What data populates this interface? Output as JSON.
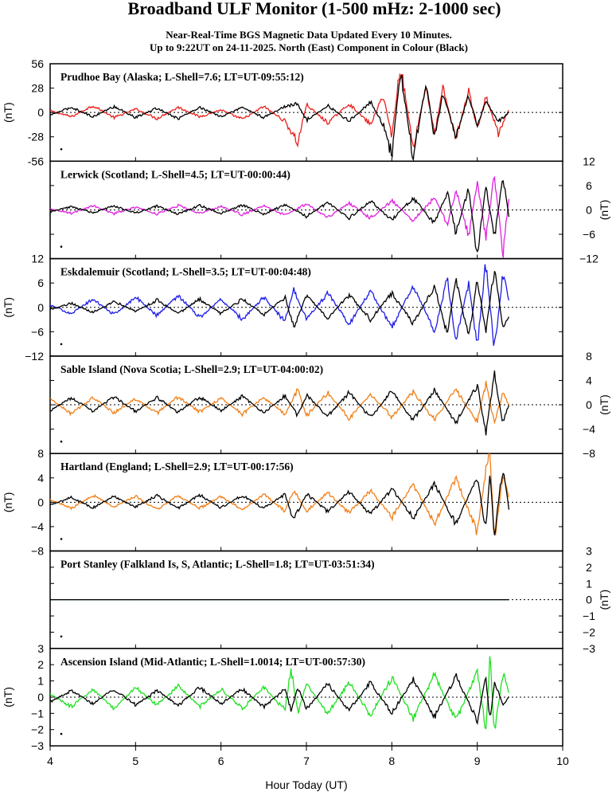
{
  "title": "Broadband ULF Monitor (1-500 mHz: 2-1000 sec)",
  "subtitle_line1": "Near-Real-Time BGS Magnetic Data Updated Every 10 Minutes.",
  "subtitle_line2": "Up to 9:22UT on 24-11-2025. North (East) Component in Colour (Black)",
  "chart_data": {
    "type": "line",
    "xlabel": "Hour Today (UT)",
    "xlim": [
      4,
      10
    ],
    "xticks": [
      "4",
      "5",
      "6",
      "7",
      "8",
      "9",
      "10"
    ],
    "data_end_hour": 9.37,
    "panels": [
      {
        "label": "Prudhoe Bay (Alaska; L-Shell=7.6; LT=UT-09:55:12)",
        "ylabel": "(nT)",
        "ylabel_side": "left",
        "ylim": [
          -56,
          56
        ],
        "yticks": [
          "56",
          "28",
          "0",
          "-28",
          "-56"
        ],
        "north_color": "#e8201c",
        "east_color": "#000000",
        "series": [
          {
            "component": "North",
            "x": [
              4.0,
              4.25,
              4.5,
              4.75,
              5.0,
              5.25,
              5.5,
              5.75,
              6.0,
              6.25,
              6.5,
              6.75,
              6.9,
              7.0,
              7.25,
              7.5,
              7.75,
              7.9,
              8.0,
              8.1,
              8.25,
              8.4,
              8.5,
              8.6,
              8.75,
              8.9,
              9.0,
              9.1,
              9.25,
              9.37
            ],
            "y": [
              2,
              -5,
              8,
              -6,
              4,
              -7,
              6,
              -5,
              3,
              -8,
              7,
              -10,
              -35,
              9,
              -12,
              10,
              -14,
              20,
              -28,
              55,
              -40,
              30,
              -25,
              28,
              -30,
              25,
              -20,
              18,
              -25,
              3
            ]
          },
          {
            "component": "East",
            "x": [
              4.0,
              4.25,
              4.5,
              4.75,
              5.0,
              5.25,
              5.5,
              5.75,
              6.0,
              6.25,
              6.5,
              6.75,
              6.9,
              7.0,
              7.25,
              7.5,
              7.75,
              7.9,
              8.0,
              8.1,
              8.25,
              8.4,
              8.5,
              8.6,
              8.75,
              8.9,
              9.0,
              9.1,
              9.25,
              9.37
            ],
            "y": [
              -3,
              6,
              -5,
              7,
              -6,
              5,
              -7,
              6,
              -5,
              6,
              -6,
              7,
              10,
              -9,
              8,
              -10,
              12,
              -14,
              -50,
              48,
              -52,
              35,
              -30,
              22,
              -28,
              20,
              -15,
              12,
              -10,
              0
            ]
          }
        ]
      },
      {
        "label": "Lerwick (Scotland; L-Shell=4.5; LT=UT-00:00:44)",
        "ylabel": "(nT)",
        "ylabel_side": "right",
        "ylim": [
          -12,
          12
        ],
        "yticks": [
          "12",
          "6",
          "0",
          "−6",
          "−12"
        ],
        "north_color": "#e020e0",
        "east_color": "#000000",
        "series": [
          {
            "component": "North",
            "x": [
              4.0,
              4.25,
              4.5,
              4.75,
              5.0,
              5.25,
              5.5,
              5.75,
              6.0,
              6.25,
              6.5,
              6.75,
              7.0,
              7.25,
              7.5,
              7.75,
              8.0,
              8.25,
              8.5,
              8.65,
              8.75,
              8.9,
              9.0,
              9.1,
              9.2,
              9.3,
              9.37
            ],
            "y": [
              0.3,
              -0.8,
              1.0,
              -0.9,
              0.7,
              -1.0,
              1.1,
              -0.8,
              0.9,
              -1.2,
              1.0,
              -1.3,
              1.5,
              -1.8,
              1.7,
              -2.0,
              2.2,
              -2.5,
              3.0,
              -3.5,
              5.0,
              -6.5,
              7.5,
              -7.0,
              8.5,
              -10.5,
              3.0
            ]
          },
          {
            "component": "East",
            "x": [
              4.0,
              4.25,
              4.5,
              4.75,
              5.0,
              5.25,
              5.5,
              5.75,
              6.0,
              6.25,
              6.5,
              6.75,
              7.0,
              7.25,
              7.5,
              7.75,
              8.0,
              8.25,
              8.5,
              8.65,
              8.75,
              8.9,
              9.0,
              9.1,
              9.2,
              9.3,
              9.37
            ],
            "y": [
              -0.5,
              0.8,
              -0.7,
              1.0,
              -0.8,
              0.9,
              -1.0,
              1.1,
              -0.9,
              1.2,
              -1.1,
              1.4,
              -1.6,
              1.8,
              -2.0,
              2.2,
              -2.5,
              3.0,
              -3.4,
              4.5,
              -6.0,
              5.5,
              -11.5,
              6.0,
              -7.0,
              8.0,
              -1.5
            ]
          }
        ]
      },
      {
        "label": "Eskdalemuir (Scotland; L-Shell=3.5; LT=UT-00:04:48)",
        "ylabel": "(nT)",
        "ylabel_side": "left",
        "ylim": [
          -12,
          12
        ],
        "yticks": [
          "12",
          "6",
          "0",
          "−6",
          "−12"
        ],
        "north_color": "#1c1ce8",
        "east_color": "#000000",
        "series": [
          {
            "component": "North",
            "x": [
              4.0,
              4.25,
              4.5,
              4.75,
              5.0,
              5.25,
              5.5,
              5.75,
              6.0,
              6.25,
              6.5,
              6.75,
              6.85,
              7.0,
              7.25,
              7.5,
              7.75,
              8.0,
              8.25,
              8.5,
              8.65,
              8.75,
              8.9,
              9.0,
              9.1,
              9.2,
              9.3,
              9.37
            ],
            "y": [
              0.5,
              -1.5,
              2.0,
              -1.8,
              2.5,
              -2.0,
              3.0,
              -2.5,
              2.0,
              -3.0,
              2.5,
              -3.5,
              4.5,
              -3.0,
              3.5,
              -4.0,
              4.0,
              -5.0,
              5.5,
              -6.0,
              7.0,
              -8.5,
              6.0,
              -9.5,
              11.0,
              -10.5,
              8.0,
              2.0
            ]
          },
          {
            "component": "East",
            "x": [
              4.0,
              4.25,
              4.5,
              4.75,
              5.0,
              5.25,
              5.5,
              5.75,
              6.0,
              6.25,
              6.5,
              6.75,
              6.85,
              7.0,
              7.25,
              7.5,
              7.75,
              8.0,
              8.25,
              8.5,
              8.65,
              8.75,
              8.9,
              9.0,
              9.1,
              9.2,
              9.3,
              9.37
            ],
            "y": [
              -0.5,
              1.0,
              -1.2,
              1.5,
              -1.0,
              1.8,
              -1.5,
              2.0,
              -1.5,
              2.0,
              -1.8,
              2.5,
              -5.0,
              3.0,
              -2.5,
              3.0,
              -3.0,
              3.5,
              -4.0,
              5.0,
              -6.5,
              7.5,
              -8.0,
              7.0,
              -6.0,
              9.5,
              -5.0,
              -2.0
            ]
          }
        ]
      },
      {
        "label": "Sable Island (Nova Scotia; L-Shell=2.9; LT=UT-04:00:02)",
        "ylabel": "(nT)",
        "ylabel_side": "right",
        "ylim": [
          -8,
          8
        ],
        "yticks": [
          "8",
          "4",
          "0",
          "−4",
          "−8"
        ],
        "north_color": "#f08018",
        "east_color": "#000000",
        "series": [
          {
            "component": "North",
            "x": [
              4.0,
              4.25,
              4.5,
              4.75,
              5.0,
              5.25,
              5.5,
              5.75,
              6.0,
              6.25,
              6.5,
              6.75,
              6.9,
              7.0,
              7.25,
              7.5,
              7.75,
              8.0,
              8.25,
              8.5,
              8.75,
              9.0,
              9.1,
              9.2,
              9.3,
              9.37
            ],
            "y": [
              1.0,
              -1.5,
              1.2,
              -1.3,
              1.0,
              -1.4,
              1.3,
              -1.2,
              1.1,
              -1.5,
              1.2,
              -1.6,
              2.5,
              -1.8,
              2.0,
              -2.2,
              1.8,
              -2.0,
              2.2,
              -2.5,
              2.5,
              -2.8,
              3.5,
              -3.0,
              2.0,
              0.0
            ]
          },
          {
            "component": "East",
            "x": [
              4.0,
              4.25,
              4.5,
              4.75,
              5.0,
              5.25,
              5.5,
              5.75,
              6.0,
              6.25,
              6.5,
              6.75,
              6.9,
              7.0,
              7.25,
              7.5,
              7.75,
              8.0,
              8.25,
              8.5,
              8.75,
              9.0,
              9.1,
              9.2,
              9.3,
              9.37
            ],
            "y": [
              -1.0,
              1.2,
              -1.0,
              1.3,
              -1.1,
              1.2,
              -1.2,
              1.3,
              -1.0,
              1.4,
              -1.3,
              1.5,
              -1.8,
              1.6,
              -1.9,
              2.0,
              -2.2,
              2.4,
              -2.6,
              2.5,
              -3.0,
              3.2,
              -4.5,
              5.0,
              -3.0,
              0.0
            ]
          }
        ]
      },
      {
        "label": "Hartland (England; L-Shell=2.9; LT=UT-00:17:56)",
        "ylabel": "(nT)",
        "ylabel_side": "left",
        "ylim": [
          -8,
          8
        ],
        "yticks": [
          "8",
          "4",
          "0",
          "−4",
          "−8"
        ],
        "north_color": "#f08018",
        "east_color": "#000000",
        "series": [
          {
            "component": "North",
            "x": [
              4.0,
              4.25,
              4.5,
              4.75,
              5.0,
              5.25,
              5.5,
              5.75,
              6.0,
              6.25,
              6.5,
              6.75,
              6.85,
              7.0,
              7.25,
              7.5,
              7.75,
              8.0,
              8.25,
              8.5,
              8.75,
              9.0,
              9.1,
              9.15,
              9.2,
              9.3,
              9.37
            ],
            "y": [
              0.5,
              -1.0,
              1.2,
              -0.8,
              1.0,
              -1.3,
              1.1,
              -1.0,
              0.9,
              -1.2,
              1.3,
              -1.4,
              2.0,
              -1.5,
              1.6,
              -1.8,
              1.9,
              -2.5,
              3.0,
              -3.5,
              4.0,
              -5.0,
              5.5,
              8.0,
              -6.0,
              4.0,
              1.0
            ]
          },
          {
            "component": "East",
            "x": [
              4.0,
              4.25,
              4.5,
              4.75,
              5.0,
              5.25,
              5.5,
              5.75,
              6.0,
              6.25,
              6.5,
              6.75,
              6.85,
              7.0,
              7.25,
              7.5,
              7.75,
              8.0,
              8.25,
              8.5,
              8.75,
              9.0,
              9.1,
              9.15,
              9.2,
              9.3,
              9.37
            ],
            "y": [
              -0.5,
              0.8,
              -0.9,
              1.0,
              -0.8,
              1.1,
              -1.0,
              1.2,
              -0.9,
              1.1,
              -1.0,
              1.3,
              -3.0,
              1.4,
              -1.5,
              1.7,
              -2.0,
              2.2,
              -2.5,
              3.0,
              -3.5,
              4.0,
              -4.5,
              5.0,
              -5.5,
              6.0,
              -1.0
            ]
          }
        ]
      },
      {
        "label": "Port Stanley (Falkland Is, S, Atlantic; L-Shell=1.8; LT=UT-03:51:34)",
        "ylabel": "(nT)",
        "ylabel_side": "right",
        "ylim": [
          -3,
          3
        ],
        "yticks": [
          "3",
          "2",
          "1",
          "0",
          "−1",
          "−2",
          "−3"
        ],
        "north_color": "#2a8a2a",
        "east_color": "#000000",
        "series": [
          {
            "component": "North",
            "x": [
              4.0,
              9.37
            ],
            "y": [
              0.0,
              0.0
            ]
          },
          {
            "component": "East",
            "x": [
              4.0,
              9.37
            ],
            "y": [
              0.0,
              0.0
            ]
          }
        ]
      },
      {
        "label": "Ascension Island (Mid-Atlantic; L-Shell=1.0014; LT=UT-00:57:30)",
        "ylabel": "(nT)",
        "ylabel_side": "left",
        "ylim": [
          -3,
          3
        ],
        "yticks": [
          "3",
          "2",
          "1",
          "0",
          "−1",
          "−2",
          "−3"
        ],
        "north_color": "#20e020",
        "east_color": "#000000",
        "series": [
          {
            "component": "North",
            "x": [
              4.0,
              4.25,
              4.5,
              4.75,
              5.0,
              5.25,
              5.5,
              5.75,
              6.0,
              6.25,
              6.5,
              6.75,
              6.82,
              6.9,
              7.0,
              7.25,
              7.5,
              7.75,
              8.0,
              8.25,
              8.5,
              8.75,
              9.0,
              9.1,
              9.15,
              9.2,
              9.3,
              9.37
            ],
            "y": [
              0.2,
              -0.6,
              0.5,
              -0.7,
              0.6,
              -0.5,
              0.7,
              -0.6,
              0.5,
              -0.7,
              0.6,
              -0.8,
              1.8,
              -1.0,
              0.8,
              -1.0,
              0.9,
              -1.1,
              1.2,
              -1.3,
              1.4,
              -1.5,
              1.6,
              -2.0,
              2.5,
              -2.3,
              1.5,
              0.2
            ]
          },
          {
            "component": "East",
            "x": [
              4.0,
              4.25,
              4.5,
              4.75,
              5.0,
              5.25,
              5.5,
              5.75,
              6.0,
              6.25,
              6.5,
              6.75,
              6.82,
              6.9,
              7.0,
              7.25,
              7.5,
              7.75,
              8.0,
              8.25,
              8.5,
              8.75,
              9.0,
              9.1,
              9.15,
              9.2,
              9.3,
              9.37
            ],
            "y": [
              -0.3,
              0.4,
              -0.4,
              0.5,
              -0.5,
              0.4,
              -0.5,
              0.6,
              -0.4,
              0.5,
              -0.6,
              0.5,
              -0.8,
              0.6,
              -0.7,
              0.8,
              -0.8,
              0.9,
              -1.0,
              1.1,
              -1.2,
              1.3,
              -1.4,
              1.2,
              -1.5,
              1.0,
              -0.5,
              0.0
            ]
          }
        ]
      }
    ]
  }
}
